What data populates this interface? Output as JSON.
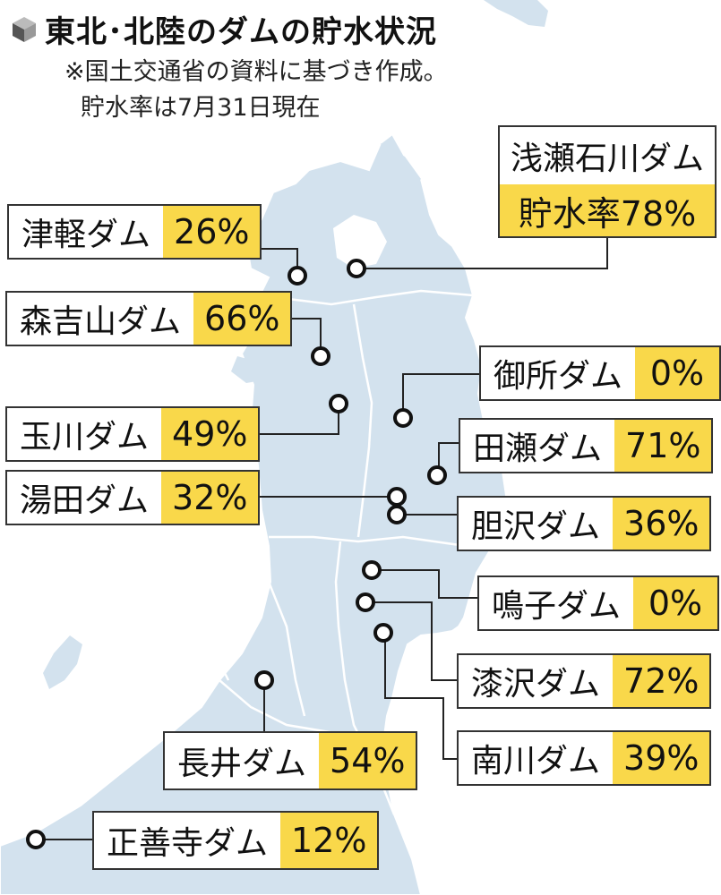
{
  "title": "東北･北陸のダムの貯水状況",
  "note_line1": "※国土交通省の資料に基づき作成。",
  "note_line2": "貯水率は7月31日現在",
  "icon": "cube-icon",
  "colors": {
    "land": "#d3e2ee",
    "border": "#ffffff",
    "highlight": "#f9d84a",
    "line": "#222222"
  },
  "dams": [
    {
      "id": "tsugaru",
      "name": "津軽ダム",
      "value": "26%"
    },
    {
      "id": "moriyoshiyama",
      "name": "森吉山ダム",
      "value": "66%"
    },
    {
      "id": "tamagawa",
      "name": "玉川ダム",
      "value": "49%"
    },
    {
      "id": "yuda",
      "name": "湯田ダム",
      "value": "32%"
    },
    {
      "id": "nagai",
      "name": "長井ダム",
      "value": "54%"
    },
    {
      "id": "shozenji",
      "name": "正善寺ダム",
      "value": "12%"
    },
    {
      "id": "asase",
      "name": "浅瀬石川ダム",
      "value": "貯水率78%"
    },
    {
      "id": "gosho",
      "name": "御所ダム",
      "value": "0%"
    },
    {
      "id": "tase",
      "name": "田瀬ダム",
      "value": "71%"
    },
    {
      "id": "isawa",
      "name": "胆沢ダム",
      "value": "36%"
    },
    {
      "id": "naruko",
      "name": "鳴子ダム",
      "value": "0%"
    },
    {
      "id": "urushizawa",
      "name": "漆沢ダム",
      "value": "72%"
    },
    {
      "id": "minamikawa",
      "name": "南川ダム",
      "value": "39%"
    }
  ]
}
